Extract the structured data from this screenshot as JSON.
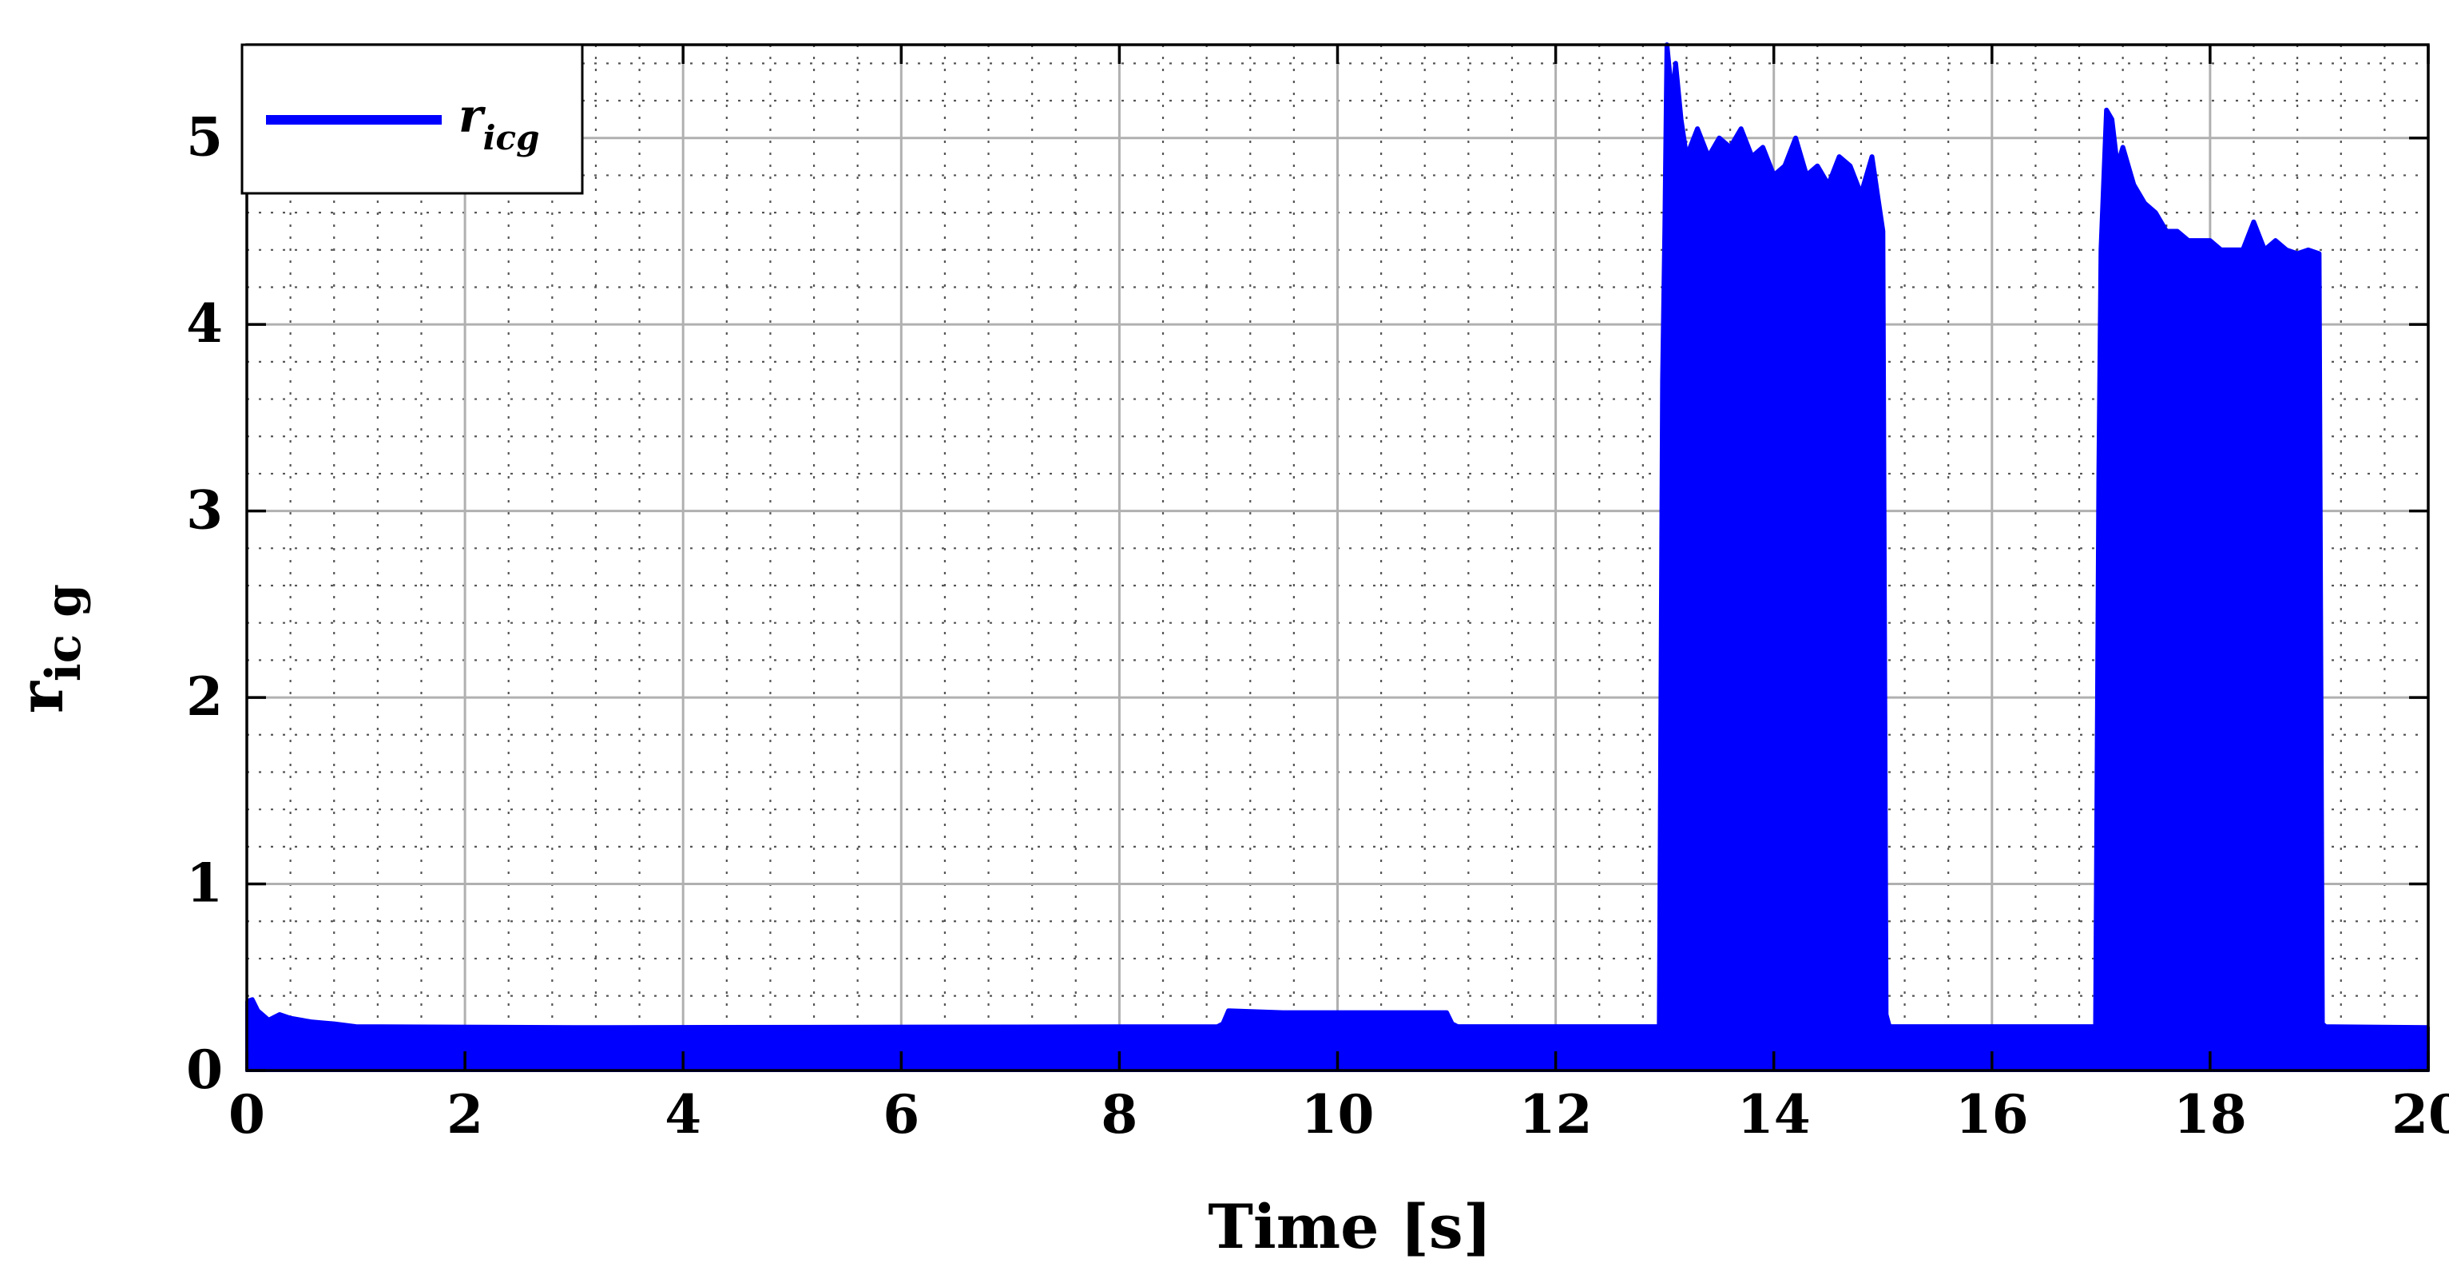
{
  "chart_data": {
    "type": "area",
    "title": "",
    "xlabel": "Time [s]",
    "ylabel": {
      "main": "r",
      "sub": "ic g"
    },
    "xlim": [
      0,
      20
    ],
    "ylim": [
      0,
      5.5
    ],
    "xticks": [
      0,
      2,
      4,
      6,
      8,
      10,
      12,
      14,
      16,
      18,
      20
    ],
    "yticks": [
      0,
      1,
      2,
      3,
      4,
      5
    ],
    "grid": true,
    "minor_grid": true,
    "legend_position": "top-left",
    "series": [
      {
        "name": {
          "main": "r",
          "sub": "icg"
        },
        "color": "#0000ff",
        "lower": 0,
        "envelope": [
          [
            0.0,
            0.37
          ],
          [
            0.05,
            0.38
          ],
          [
            0.1,
            0.32
          ],
          [
            0.2,
            0.27
          ],
          [
            0.3,
            0.3
          ],
          [
            0.4,
            0.28
          ],
          [
            0.5,
            0.27
          ],
          [
            0.6,
            0.26
          ],
          [
            0.7,
            0.255
          ],
          [
            0.8,
            0.25
          ],
          [
            1.0,
            0.235
          ],
          [
            3.0,
            0.23
          ],
          [
            8.9,
            0.235
          ],
          [
            8.95,
            0.25
          ],
          [
            9.0,
            0.32
          ],
          [
            9.5,
            0.31
          ],
          [
            10.0,
            0.31
          ],
          [
            10.5,
            0.31
          ],
          [
            11.0,
            0.31
          ],
          [
            11.05,
            0.25
          ],
          [
            11.1,
            0.235
          ],
          [
            12.95,
            0.235
          ],
          [
            12.98,
            3.7
          ],
          [
            13.0,
            4.5
          ],
          [
            13.02,
            5.5
          ],
          [
            13.07,
            5.2
          ],
          [
            13.1,
            5.4
          ],
          [
            13.15,
            5.1
          ],
          [
            13.2,
            4.9
          ],
          [
            13.3,
            5.05
          ],
          [
            13.4,
            4.9
          ],
          [
            13.5,
            5.0
          ],
          [
            13.6,
            4.95
          ],
          [
            13.7,
            5.05
          ],
          [
            13.8,
            4.9
          ],
          [
            13.9,
            4.95
          ],
          [
            14.0,
            4.8
          ],
          [
            14.1,
            4.85
          ],
          [
            14.2,
            5.0
          ],
          [
            14.3,
            4.8
          ],
          [
            14.4,
            4.85
          ],
          [
            14.5,
            4.75
          ],
          [
            14.6,
            4.9
          ],
          [
            14.7,
            4.85
          ],
          [
            14.8,
            4.7
          ],
          [
            14.9,
            4.9
          ],
          [
            14.95,
            4.7
          ],
          [
            15.0,
            4.5
          ],
          [
            15.03,
            0.3
          ],
          [
            15.06,
            0.235
          ],
          [
            16.95,
            0.235
          ],
          [
            16.98,
            3.2
          ],
          [
            17.0,
            4.4
          ],
          [
            17.05,
            5.15
          ],
          [
            17.1,
            5.1
          ],
          [
            17.15,
            4.85
          ],
          [
            17.2,
            4.95
          ],
          [
            17.3,
            4.75
          ],
          [
            17.4,
            4.65
          ],
          [
            17.5,
            4.6
          ],
          [
            17.6,
            4.5
          ],
          [
            17.7,
            4.5
          ],
          [
            17.8,
            4.45
          ],
          [
            17.9,
            4.45
          ],
          [
            18.0,
            4.45
          ],
          [
            18.1,
            4.4
          ],
          [
            18.2,
            4.4
          ],
          [
            18.3,
            4.4
          ],
          [
            18.4,
            4.55
          ],
          [
            18.5,
            4.4
          ],
          [
            18.6,
            4.45
          ],
          [
            18.7,
            4.4
          ],
          [
            18.8,
            4.38
          ],
          [
            18.9,
            4.4
          ],
          [
            19.0,
            4.38
          ],
          [
            19.03,
            0.25
          ],
          [
            19.06,
            0.235
          ],
          [
            20.0,
            0.23
          ]
        ]
      }
    ]
  }
}
